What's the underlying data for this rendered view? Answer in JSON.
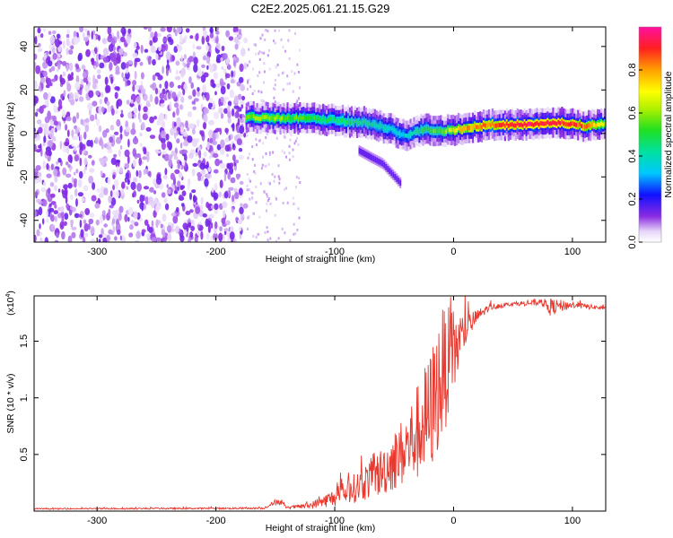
{
  "title": "C2E2.2025.061.21.15.G29",
  "chart_data": [
    {
      "type": "heatmap",
      "xlabel": "Height of straight line (km)",
      "ylabel": "Frequency (Hz)",
      "xlim": [
        -353,
        128
      ],
      "ylim": [
        -50,
        49
      ],
      "x_ticks": [
        -300,
        -200,
        -100,
        0,
        100
      ],
      "y_ticks": [
        -40,
        -20,
        0,
        20,
        40
      ],
      "colorbar": {
        "label": "Normalized spectral amplitude",
        "range": [
          0,
          1
        ],
        "ticks": [
          0.0,
          0.2,
          0.4,
          0.6,
          0.8
        ],
        "tick_labels": [
          "0.0",
          "0.2",
          "0.4",
          "0.6",
          "0.8"
        ]
      },
      "noise_region_x": [
        -353,
        -175
      ],
      "ridge": [
        {
          "x": -175,
          "f": 7.5,
          "amp": 0.55
        },
        {
          "x": -150,
          "f": 7.0,
          "amp": 0.6
        },
        {
          "x": -125,
          "f": 7.0,
          "amp": 0.5
        },
        {
          "x": -100,
          "f": 6.0,
          "amp": 0.45
        },
        {
          "x": -75,
          "f": 5.0,
          "amp": 0.45
        },
        {
          "x": -55,
          "f": 2.0,
          "amp": 0.4
        },
        {
          "x": -40,
          "f": -1.0,
          "amp": 0.35
        },
        {
          "x": -25,
          "f": 2.0,
          "amp": 0.5
        },
        {
          "x": -10,
          "f": 1.0,
          "amp": 0.55
        },
        {
          "x": 5,
          "f": 2.0,
          "amp": 0.75
        },
        {
          "x": 30,
          "f": 4.0,
          "amp": 0.85
        },
        {
          "x": 60,
          "f": 4.0,
          "amp": 0.95
        },
        {
          "x": 90,
          "f": 5.0,
          "amp": 0.9
        },
        {
          "x": 110,
          "f": 3.5,
          "amp": 0.85
        },
        {
          "x": 128,
          "f": 4.5,
          "amp": 0.6
        }
      ],
      "branch": [
        {
          "x": -80,
          "f": -8.0
        },
        {
          "x": -60,
          "f": -14.0
        },
        {
          "x": -45,
          "f": -23.0
        }
      ]
    },
    {
      "type": "line",
      "xlabel": "Height of straight line (km)",
      "ylabel": "SNR (10 * v/v)",
      "y_multiplier": "(x10",
      "y_multiplier_exp": "4",
      "xlim": [
        -353,
        128
      ],
      "ylim": [
        0,
        1.9
      ],
      "x_ticks": [
        -300,
        -200,
        -100,
        0,
        100
      ],
      "y_ticks": [
        0.5,
        1.0,
        1.5
      ],
      "y_tick_labels": [
        "0.5",
        "1.",
        "1.5"
      ],
      "series": [
        {
          "color": "#e8392f",
          "envelope": [
            {
              "x": -353,
              "y": 0.02,
              "spread": 0.005
            },
            {
              "x": -160,
              "y": 0.025,
              "spread": 0.008
            },
            {
              "x": -148,
              "y": 0.09,
              "spread": 0.03
            },
            {
              "x": -140,
              "y": 0.03,
              "spread": 0.01
            },
            {
              "x": -120,
              "y": 0.05,
              "spread": 0.03
            },
            {
              "x": -100,
              "y": 0.12,
              "spread": 0.08
            },
            {
              "x": -80,
              "y": 0.22,
              "spread": 0.14
            },
            {
              "x": -60,
              "y": 0.35,
              "spread": 0.22
            },
            {
              "x": -40,
              "y": 0.55,
              "spread": 0.32
            },
            {
              "x": -20,
              "y": 0.85,
              "spread": 0.55
            },
            {
              "x": -10,
              "y": 1.2,
              "spread": 0.6
            },
            {
              "x": 0,
              "y": 1.4,
              "spread": 0.4
            },
            {
              "x": 10,
              "y": 1.6,
              "spread": 0.15
            },
            {
              "x": 20,
              "y": 1.72,
              "spread": 0.06
            },
            {
              "x": 30,
              "y": 1.8,
              "spread": 0.03
            },
            {
              "x": 50,
              "y": 1.83,
              "spread": 0.015
            },
            {
              "x": 75,
              "y": 1.84,
              "spread": 0.03
            },
            {
              "x": 80,
              "y": 1.8,
              "spread": 0.08
            },
            {
              "x": 100,
              "y": 1.82,
              "spread": 0.03
            },
            {
              "x": 128,
              "y": 1.79,
              "spread": 0.015
            }
          ]
        }
      ]
    }
  ]
}
